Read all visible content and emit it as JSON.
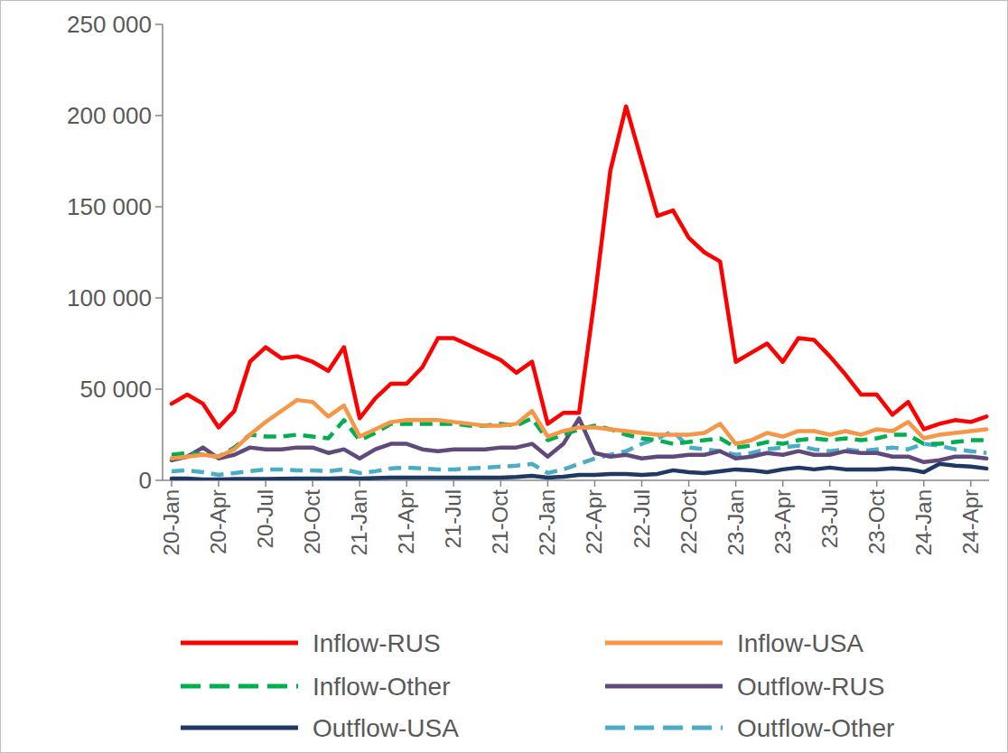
{
  "chart_data": {
    "type": "line",
    "categories": [
      "20-Jan",
      null,
      null,
      "20-Apr",
      null,
      null,
      "20-Jul",
      null,
      null,
      "20-Oct",
      null,
      null,
      "21-Jan",
      null,
      null,
      "21-Apr",
      null,
      null,
      "21-Jul",
      null,
      null,
      "21-Oct",
      null,
      null,
      "22-Jan",
      null,
      null,
      "22-Apr",
      null,
      null,
      "22-Jul",
      null,
      null,
      "22-Oct",
      null,
      null,
      "23-Jan",
      null,
      null,
      "23-Apr",
      null,
      null,
      "23-Jul",
      null,
      null,
      "23-Oct",
      null,
      null,
      "24-Jan",
      null,
      null,
      "24-Apr",
      null
    ],
    "ylim": [
      0,
      250000
    ],
    "yticks": [
      0,
      {
        "value": 50000,
        "label": "50 000"
      },
      {
        "value": 100000,
        "label": "100 000"
      },
      {
        "value": 150000,
        "label": "150 000"
      },
      {
        "value": 200000,
        "label": "200 000"
      },
      {
        "value": 250000,
        "label": "250 000"
      }
    ],
    "grid": false,
    "legend": "bottom",
    "series": [
      {
        "name": "Inflow-RUS",
        "color": "#ff0000",
        "line_style": "solid",
        "values": [
          42000,
          47000,
          42000,
          29000,
          38000,
          65000,
          73000,
          67000,
          68000,
          65000,
          60000,
          73000,
          34000,
          45000,
          53000,
          53000,
          62000,
          78000,
          78000,
          74000,
          70000,
          66000,
          59000,
          65000,
          31000,
          37000,
          37000,
          100000,
          170000,
          205000,
          175000,
          145000,
          148000,
          133000,
          125000,
          120000,
          65000,
          70000,
          75000,
          65000,
          78000,
          77000,
          68000,
          58000,
          47000,
          47000,
          36000,
          43000,
          28000,
          31000,
          33000,
          32000,
          35000
        ]
      },
      {
        "name": "Inflow-USA",
        "color": "#f79646",
        "line_style": "solid",
        "values": [
          12000,
          13000,
          14000,
          13000,
          17000,
          25000,
          32000,
          38000,
          44000,
          43000,
          35000,
          41000,
          24000,
          28000,
          32000,
          33000,
          33000,
          33000,
          32000,
          31000,
          30000,
          30000,
          31000,
          38000,
          24000,
          27000,
          29000,
          29000,
          28000,
          27000,
          26000,
          25000,
          25000,
          25000,
          26000,
          31000,
          20000,
          22000,
          26000,
          24000,
          27000,
          27000,
          25000,
          27000,
          25000,
          28000,
          27000,
          32000,
          23000,
          25000,
          26000,
          27000,
          28000
        ]
      },
      {
        "name": "Inflow-Other",
        "color": "#00b050",
        "line_style": "dashed",
        "values": [
          14000,
          15000,
          14000,
          13000,
          18000,
          25000,
          24000,
          24000,
          25000,
          24000,
          23000,
          33000,
          22000,
          26000,
          31000,
          31000,
          31000,
          31000,
          31000,
          30000,
          30000,
          31000,
          30000,
          34000,
          22000,
          25000,
          28000,
          30000,
          28000,
          25000,
          23000,
          22000,
          20000,
          21000,
          22000,
          23000,
          18000,
          19000,
          21000,
          20000,
          22000,
          23000,
          22000,
          23000,
          22000,
          23000,
          25000,
          25000,
          20000,
          20000,
          21000,
          22000,
          22000
        ]
      },
      {
        "name": "Outflow-RUS",
        "color": "#604a7b",
        "line_style": "solid",
        "values": [
          11000,
          13000,
          18000,
          12000,
          14000,
          18000,
          17000,
          17000,
          18000,
          18000,
          15000,
          17000,
          12000,
          17000,
          20000,
          20000,
          17000,
          16000,
          17000,
          17000,
          17000,
          18000,
          18000,
          20000,
          13000,
          20000,
          34000,
          15000,
          13000,
          14000,
          12000,
          13000,
          13000,
          14000,
          14000,
          16000,
          12000,
          13000,
          15000,
          14000,
          16000,
          14000,
          14000,
          16000,
          15000,
          15000,
          13000,
          13000,
          10000,
          11000,
          13000,
          13000,
          12000
        ]
      },
      {
        "name": "Outflow-USA",
        "color": "#1f3864",
        "line_style": "solid",
        "values": [
          1000,
          1000,
          500,
          500,
          700,
          800,
          800,
          900,
          1000,
          1000,
          1000,
          1200,
          1000,
          1200,
          1500,
          1500,
          1500,
          1500,
          1500,
          1500,
          1500,
          1500,
          1800,
          2500,
          1500,
          2000,
          3000,
          3000,
          3500,
          3500,
          3000,
          3500,
          5500,
          4500,
          4000,
          5000,
          6000,
          5500,
          4500,
          6000,
          7000,
          6000,
          7000,
          6000,
          6000,
          6000,
          6500,
          6000,
          4500,
          9000,
          8000,
          7500,
          6500
        ]
      },
      {
        "name": "Outflow-Other",
        "color": "#4bacc6",
        "line_style": "dashed",
        "values": [
          5000,
          5500,
          4500,
          3000,
          4000,
          5000,
          6000,
          6000,
          5500,
          5500,
          5000,
          6000,
          4000,
          5000,
          6500,
          7000,
          6500,
          6000,
          6000,
          6500,
          7000,
          7500,
          8000,
          9000,
          4000,
          6000,
          9000,
          12000,
          14000,
          16000,
          20000,
          23000,
          27000,
          18000,
          17000,
          16000,
          14000,
          15000,
          17000,
          18000,
          19000,
          17000,
          16000,
          17000,
          16000,
          17000,
          18000,
          17000,
          20000,
          19000,
          17000,
          16000,
          15000
        ]
      }
    ]
  }
}
